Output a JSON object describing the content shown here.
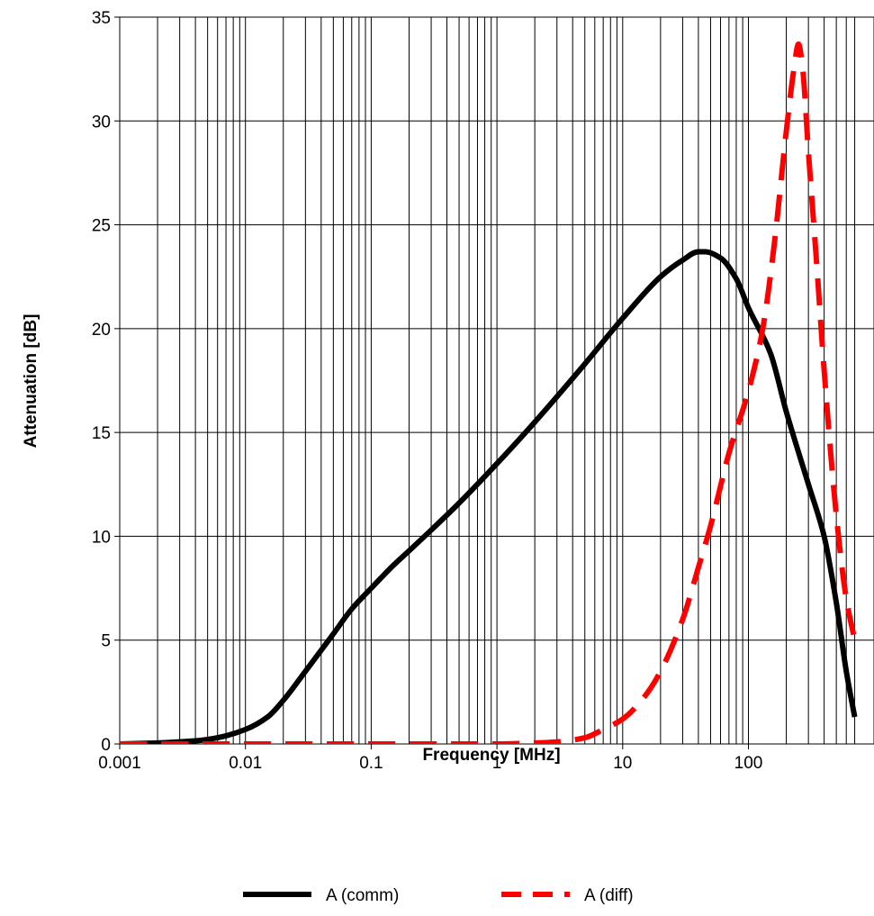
{
  "chart_data": {
    "type": "line",
    "title": "",
    "xlabel": "Frequency [MHz]",
    "ylabel": "Attenuation [dB]",
    "x_scale": "log",
    "xlim": [
      0.001,
      700
    ],
    "ylim": [
      0,
      35
    ],
    "x_ticks": [
      {
        "value": 0.001,
        "label": "0.001"
      },
      {
        "value": 0.01,
        "label": "0.01"
      },
      {
        "value": 0.1,
        "label": "0.1"
      },
      {
        "value": 1,
        "label": "1"
      },
      {
        "value": 10,
        "label": "10"
      },
      {
        "value": 100,
        "label": "100"
      }
    ],
    "y_ticks": [
      {
        "value": 0,
        "label": "0"
      },
      {
        "value": 5,
        "label": "5"
      },
      {
        "value": 10,
        "label": "10"
      },
      {
        "value": 15,
        "label": "15"
      },
      {
        "value": 20,
        "label": "20"
      },
      {
        "value": 25,
        "label": "25"
      },
      {
        "value": 30,
        "label": "30"
      },
      {
        "value": 35,
        "label": "35"
      }
    ],
    "grid": true,
    "legend_position": "bottom",
    "series": [
      {
        "name": "A (comm)",
        "color": "#000000",
        "style": "solid",
        "x": [
          0.001,
          0.002,
          0.004,
          0.006,
          0.01,
          0.015,
          0.02,
          0.03,
          0.05,
          0.07,
          0.1,
          0.15,
          0.2,
          0.3,
          0.5,
          1,
          2,
          5,
          10,
          20,
          30,
          40,
          45,
          60,
          80,
          100,
          150,
          200,
          300,
          400,
          500,
          600,
          700
        ],
        "y": [
          0.0,
          0.05,
          0.15,
          0.3,
          0.7,
          1.3,
          2.1,
          3.5,
          5.3,
          6.5,
          7.5,
          8.6,
          9.3,
          10.3,
          11.6,
          13.5,
          15.5,
          18.3,
          20.5,
          22.5,
          23.3,
          23.7,
          23.7,
          23.4,
          22.4,
          21.0,
          18.8,
          16.0,
          12.5,
          10.0,
          6.8,
          3.5,
          1.3
        ]
      },
      {
        "name": "A (diff)",
        "color": "#ff0000",
        "style": "dashed",
        "x": [
          0.001,
          0.01,
          0.1,
          1,
          2,
          3,
          5,
          7,
          10,
          15,
          20,
          30,
          40,
          50,
          70,
          100,
          130,
          160,
          200,
          230,
          250,
          270,
          300,
          350,
          400,
          500,
          600,
          700
        ],
        "y": [
          0.0,
          0.0,
          0.0,
          0.0,
          0.05,
          0.1,
          0.3,
          0.7,
          1.2,
          2.3,
          3.5,
          6.0,
          8.5,
          10.5,
          14.0,
          17.0,
          20.0,
          24.0,
          29.5,
          32.5,
          33.7,
          32.5,
          28.5,
          23.0,
          18.0,
          11.0,
          7.0,
          5.0
        ]
      }
    ]
  }
}
